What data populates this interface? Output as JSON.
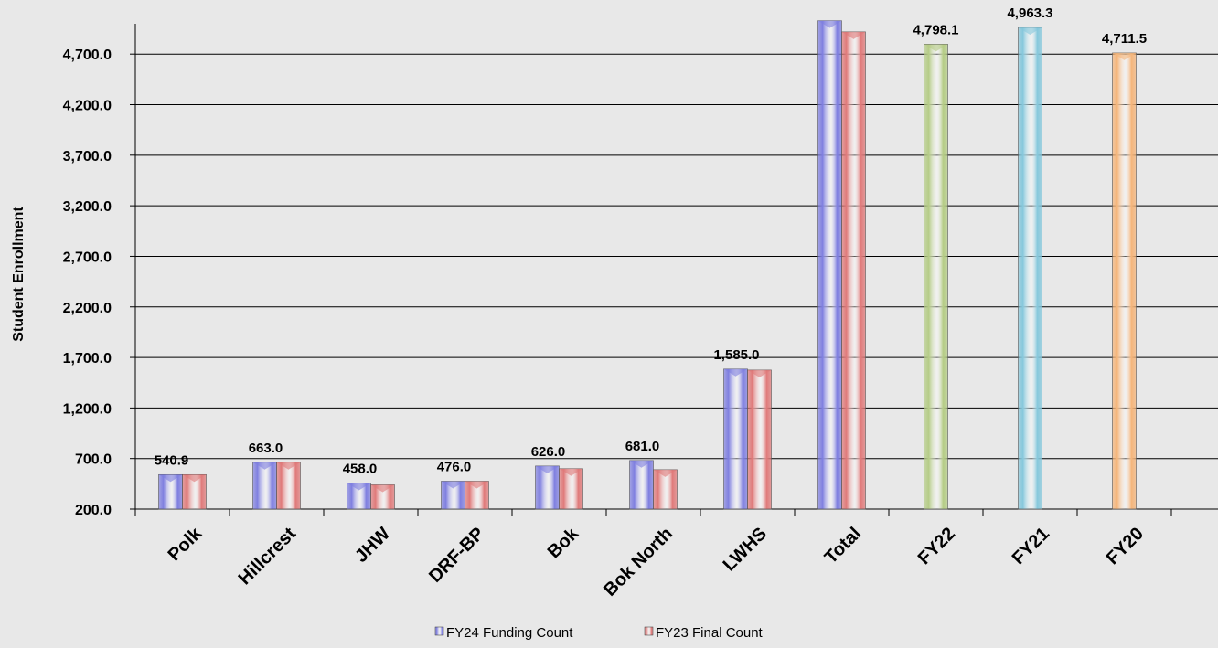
{
  "chart_data": {
    "type": "bar",
    "title": "",
    "xlabel": "",
    "ylabel": "Student Enrollment",
    "ylim": [
      200,
      5000
    ],
    "yticks": [
      "200.0",
      "700.0",
      "1,200.0",
      "1,700.0",
      "2,200.0",
      "2,700.0",
      "3,200.0",
      "3,700.0",
      "4,200.0",
      "4,700.0"
    ],
    "ytick_values": [
      200,
      700,
      1200,
      1700,
      2200,
      2700,
      3200,
      3700,
      4200,
      4700
    ],
    "categories": [
      "Polk",
      "Hillcrest",
      "JHW",
      "DRF-BP",
      "Bok",
      "Bok North",
      "LWHS",
      "Total",
      "FY22",
      "FY21",
      "FY20"
    ],
    "grid": true,
    "legend_position": "bottom",
    "series": [
      {
        "name": "FY24 Funding Count",
        "color": "#7f7fe0",
        "values": [
          540.9,
          663.0,
          458.0,
          476.0,
          626.0,
          681.0,
          1585.0,
          5030.0,
          null,
          null,
          null
        ],
        "labels": [
          "540.9",
          "663.0",
          "458.0",
          "476.0",
          "626.0",
          "681.0",
          "1,585.0",
          null,
          null,
          null,
          null
        ]
      },
      {
        "name": "FY23  Final Count",
        "color": "#e07a7a",
        "values": [
          540.9,
          663.0,
          440.0,
          476.0,
          600.0,
          590.0,
          1575.0,
          4920.0,
          null,
          null,
          null
        ],
        "labels": [
          null,
          null,
          null,
          null,
          null,
          null,
          null,
          null,
          null,
          null,
          null
        ]
      },
      {
        "name": "",
        "color": "#b5cc86",
        "values": [
          null,
          null,
          null,
          null,
          null,
          null,
          null,
          null,
          4798.1,
          null,
          null
        ],
        "labels": [
          null,
          null,
          null,
          null,
          null,
          null,
          null,
          null,
          "4,798.1",
          null,
          null
        ]
      },
      {
        "name": "",
        "color": "#86c8dc",
        "values": [
          null,
          null,
          null,
          null,
          null,
          null,
          null,
          null,
          null,
          4963.3,
          null
        ],
        "labels": [
          null,
          null,
          null,
          null,
          null,
          null,
          null,
          null,
          null,
          "4,963.3",
          null
        ]
      },
      {
        "name": "",
        "color": "#f5b57a",
        "values": [
          null,
          null,
          null,
          null,
          null,
          null,
          null,
          null,
          null,
          null,
          4711.5
        ],
        "labels": [
          null,
          null,
          null,
          null,
          null,
          null,
          null,
          null,
          null,
          null,
          "4,711.5"
        ]
      }
    ]
  }
}
